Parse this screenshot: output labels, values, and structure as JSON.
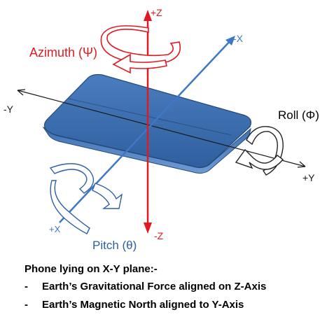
{
  "axes": {
    "plus_z": "+Z",
    "minus_z": "-Z",
    "plus_y": "+Y",
    "minus_y": "-Y",
    "plus_x": "+X",
    "minus_x": "-X"
  },
  "rotations": {
    "azimuth": "Azimuth (Ψ)",
    "roll": "Roll (Φ)",
    "pitch": "Pitch (θ)"
  },
  "caption": {
    "title": "Phone lying on X-Y plane:-",
    "items": [
      {
        "bullet": "-",
        "text": "Earth’s Gravitational Force  aligned on Z-Axis"
      },
      {
        "bullet": "-",
        "text": "Earth’s Magnetic North aligned to Y-Axis"
      }
    ]
  },
  "colors": {
    "z_axis": "#e01a22",
    "x_axis": "#3c78c4",
    "y_axis": "#1a1a1a",
    "phone": "#3a6aa8",
    "azimuth_label": "#e01a22",
    "pitch_label": "#2e5fa8",
    "roll_label": "#000000"
  }
}
